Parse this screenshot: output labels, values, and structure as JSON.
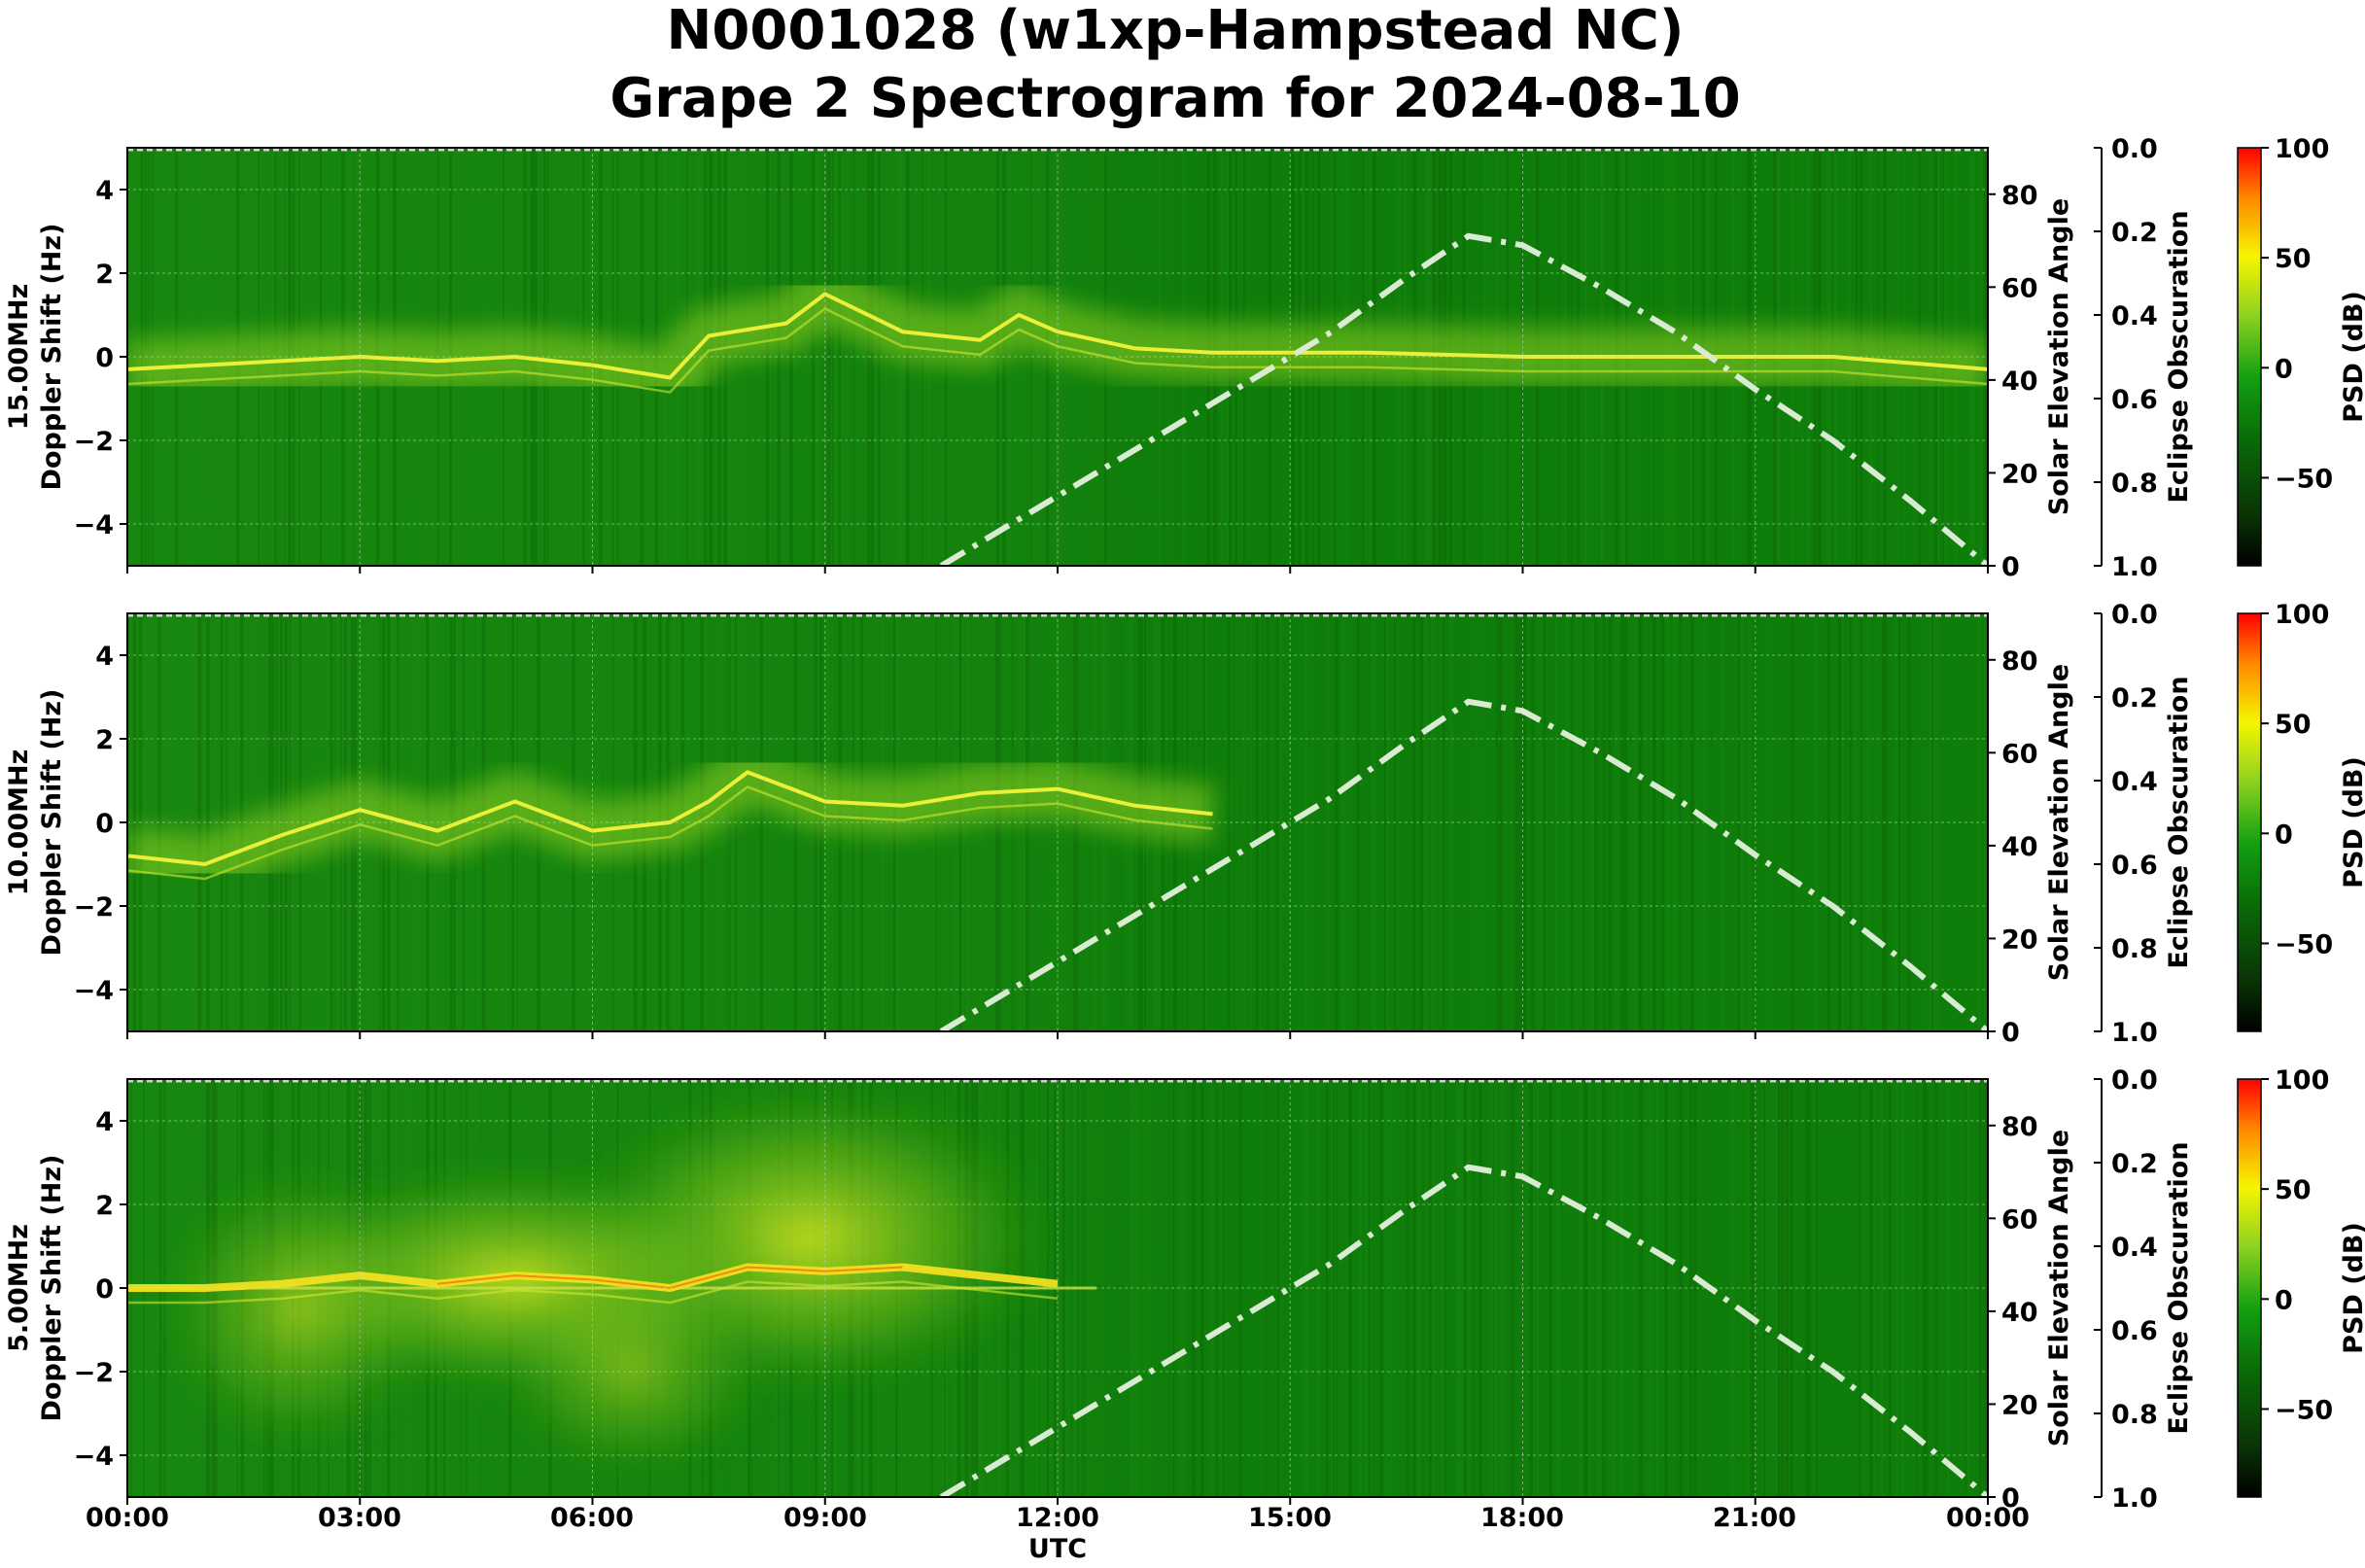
{
  "figure": {
    "title_line1": "N0001028 (w1xp-Hampstead NC)",
    "title_line2": "Grape 2 Spectrogram for 2024-08-10",
    "x_axis_label": "UTC",
    "x_ticks": [
      "00:00",
      "03:00",
      "06:00",
      "09:00",
      "12:00",
      "15:00",
      "18:00",
      "21:00",
      "00:00"
    ],
    "y_ticks": [
      "4",
      "2",
      "0",
      "−2",
      "−4"
    ],
    "elev_ticks": [
      "80",
      "60",
      "40",
      "20",
      "0"
    ],
    "ecl_ticks": [
      "0.0",
      "0.2",
      "0.4",
      "0.6",
      "0.8",
      "1.0"
    ],
    "cb_ticks": [
      "100",
      "50",
      "0",
      "−50"
    ],
    "elev_label": "Solar Elevation Angle",
    "ecl_label": "Eclipse Obscuration",
    "cb_label": "PSD (dB)",
    "doppler_label": "Doppler Shift (Hz)"
  },
  "colors": {
    "background_green": "#0f7d0a",
    "trace_yellow": "#f2f23a",
    "hot_red": "#ff3300",
    "elevation_curve": "#d9ebd3",
    "colormap": [
      "#000000",
      "#0a3306",
      "#0a6a08",
      "#12a010",
      "#8fd220",
      "#f5f500",
      "#ff8800",
      "#ff0000"
    ]
  },
  "chart_data": [
    {
      "type": "heatmap",
      "panel_label": "15.00MHz",
      "ylabel": "Doppler Shift (Hz)",
      "xlabel": "",
      "xlim_hours": [
        0,
        24
      ],
      "ylim": [
        -5,
        5
      ],
      "y2label": "Solar Elevation Angle",
      "y2lim": [
        0,
        90
      ],
      "y3label": "Eclipse Obscuration",
      "y3lim": [
        0.0,
        1.0
      ],
      "colorbar": {
        "label": "PSD (dB)",
        "range": [
          -90,
          100
        ]
      },
      "doppler_trace": [
        [
          0,
          -0.3
        ],
        [
          1,
          -0.2
        ],
        [
          2,
          -0.1
        ],
        [
          3,
          0.0
        ],
        [
          4,
          -0.1
        ],
        [
          5,
          0.0
        ],
        [
          6,
          -0.2
        ],
        [
          7,
          -0.5
        ],
        [
          7.5,
          0.5
        ],
        [
          8.5,
          0.8
        ],
        [
          9,
          1.5
        ],
        [
          10,
          0.6
        ],
        [
          11,
          0.4
        ],
        [
          11.5,
          1.0
        ],
        [
          12,
          0.6
        ],
        [
          13,
          0.2
        ],
        [
          14,
          0.1
        ],
        [
          16,
          0.1
        ],
        [
          18,
          0.0
        ],
        [
          20,
          0.0
        ],
        [
          22,
          0.0
        ],
        [
          24,
          -0.3
        ]
      ],
      "solar_elevation": [
        [
          10.5,
          0
        ],
        [
          11.5,
          10
        ],
        [
          12.5,
          20
        ],
        [
          13.5,
          30
        ],
        [
          14.5,
          40
        ],
        [
          15.5,
          50
        ],
        [
          16.5,
          62
        ],
        [
          17.3,
          71
        ],
        [
          18,
          69
        ],
        [
          19,
          60
        ],
        [
          20,
          50
        ],
        [
          21,
          38
        ],
        [
          22,
          27
        ],
        [
          23,
          14
        ],
        [
          24,
          0
        ]
      ]
    },
    {
      "type": "heatmap",
      "panel_label": "10.00MHz",
      "ylabel": "Doppler Shift (Hz)",
      "xlabel": "",
      "xlim_hours": [
        0,
        24
      ],
      "ylim": [
        -5,
        5
      ],
      "y2label": "Solar Elevation Angle",
      "y2lim": [
        0,
        90
      ],
      "y3label": "Eclipse Obscuration",
      "y3lim": [
        0.0,
        1.0
      ],
      "colorbar": {
        "label": "PSD (dB)",
        "range": [
          -90,
          100
        ]
      },
      "doppler_trace": [
        [
          0,
          -0.8
        ],
        [
          1,
          -1.0
        ],
        [
          2,
          -0.3
        ],
        [
          3,
          0.3
        ],
        [
          4,
          -0.2
        ],
        [
          5,
          0.5
        ],
        [
          6,
          -0.2
        ],
        [
          7,
          0.0
        ],
        [
          7.5,
          0.5
        ],
        [
          8,
          1.2
        ],
        [
          9,
          0.5
        ],
        [
          10,
          0.4
        ],
        [
          11,
          0.7
        ],
        [
          12,
          0.8
        ],
        [
          13,
          0.4
        ],
        [
          14,
          0.2
        ]
      ],
      "solar_elevation": [
        [
          10.5,
          0
        ],
        [
          11.5,
          10
        ],
        [
          12.5,
          20
        ],
        [
          13.5,
          30
        ],
        [
          14.5,
          40
        ],
        [
          15.5,
          50
        ],
        [
          16.5,
          62
        ],
        [
          17.3,
          71
        ],
        [
          18,
          69
        ],
        [
          19,
          60
        ],
        [
          20,
          50
        ],
        [
          21,
          38
        ],
        [
          22,
          27
        ],
        [
          23,
          14
        ],
        [
          24,
          0
        ]
      ]
    },
    {
      "type": "heatmap",
      "panel_label": "5.00MHz",
      "ylabel": "Doppler Shift (Hz)",
      "xlabel": "UTC",
      "xlim_hours": [
        0,
        24
      ],
      "ylim": [
        -5,
        5
      ],
      "y2label": "Solar Elevation Angle",
      "y2lim": [
        0,
        90
      ],
      "y3label": "Eclipse Obscuration",
      "y3lim": [
        0.0,
        1.0
      ],
      "colorbar": {
        "label": "PSD (dB)",
        "range": [
          -90,
          100
        ]
      },
      "doppler_trace": [
        [
          0,
          0.0
        ],
        [
          1,
          0.0
        ],
        [
          2,
          0.1
        ],
        [
          3,
          0.3
        ],
        [
          4,
          0.1
        ],
        [
          5,
          0.3
        ],
        [
          6,
          0.2
        ],
        [
          7,
          0.0
        ],
        [
          8,
          0.5
        ],
        [
          9,
          0.4
        ],
        [
          10,
          0.5
        ],
        [
          11,
          0.3
        ],
        [
          12,
          0.1
        ]
      ],
      "solar_elevation": [
        [
          10.5,
          0
        ],
        [
          11.5,
          10
        ],
        [
          12.5,
          20
        ],
        [
          13.5,
          30
        ],
        [
          14.5,
          40
        ],
        [
          15.5,
          50
        ],
        [
          16.5,
          62
        ],
        [
          17.3,
          71
        ],
        [
          18,
          69
        ],
        [
          19,
          60
        ],
        [
          20,
          50
        ],
        [
          21,
          38
        ],
        [
          22,
          27
        ],
        [
          23,
          14
        ],
        [
          24,
          0
        ]
      ]
    }
  ]
}
